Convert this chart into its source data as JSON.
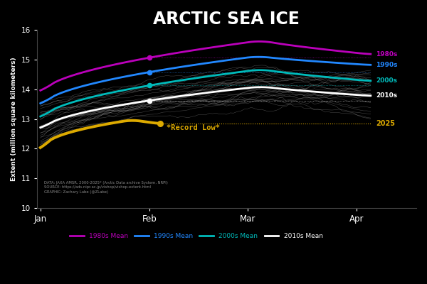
{
  "title": "ARCTIC SEA ICE",
  "ylabel": "Extent (million square kilometers)",
  "background_color": "#000000",
  "title_color": "#ffffff",
  "ylim": [
    10.0,
    16.0
  ],
  "yticks": [
    10,
    11,
    12,
    13,
    14,
    15,
    16
  ],
  "month_ticks": [
    0,
    31,
    59,
    90
  ],
  "month_labels": [
    "Jan",
    "Feb",
    "Mar",
    "Apr"
  ],
  "decadal_colors": {
    "1980s": "#bb00bb",
    "1990s": "#2288ff",
    "2000s": "#00bbbb",
    "2010s": "#ffffff"
  },
  "year2025_color": "#ddaa00",
  "thin_line_color": "#aaaaaa",
  "annotation_text": "*Record Low*",
  "annotation_color": "#ddaa00",
  "source_text": "DATA: JAXA AMSR, 2000-2025* (Arctic Data archive System, NRPI)\nSOURCE: https://ads.nipr.ac.jp/vishop/vishop-extent.html\nGRAPHIC: Zachary Labe (@ZLabe)",
  "legend_items": [
    {
      "label": "1980s Mean",
      "color": "#bb00bb"
    },
    {
      "label": "1990s Mean",
      "color": "#2288ff"
    },
    {
      "label": "2000s Mean",
      "color": "#00bbbb"
    },
    {
      "label": "2010s Mean",
      "color": "#ffffff"
    }
  ],
  "label_2025": "2025",
  "label_2025_color": "#ddaa00",
  "decadal_label_colors": {
    "1980s": "#bb00bb",
    "1990s": "#2288ff",
    "2000s": "#00bbbb",
    "2010s": "#ffffff"
  },
  "n_days": 95,
  "dot_day": 31,
  "n_2025_days": 35,
  "record_low_val": 12.84
}
